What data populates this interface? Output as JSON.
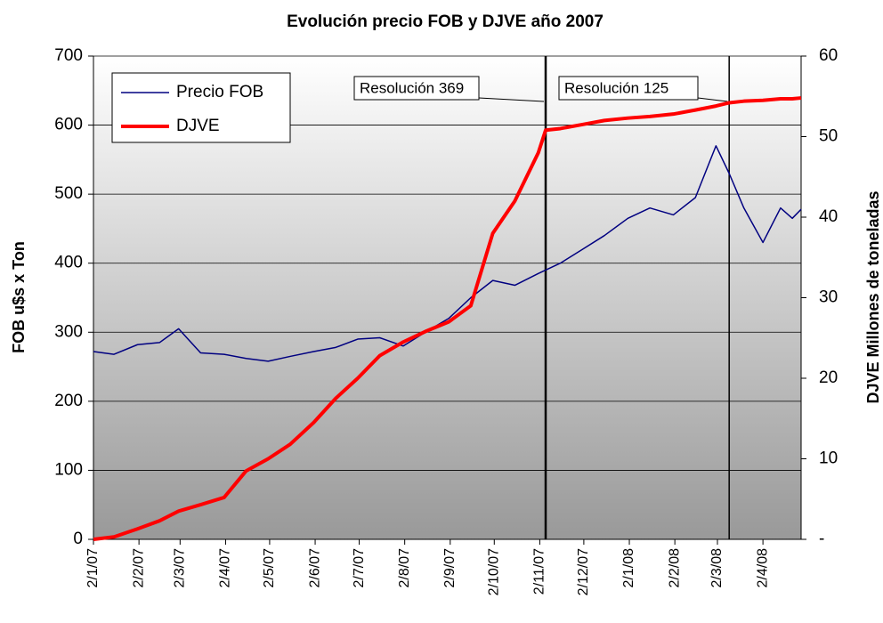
{
  "chart_data": {
    "type": "line",
    "title": "Evolución precio FOB y DJVE año 2007",
    "y_label": "FOB u$s x Ton",
    "y2_label": "DJVE Millones de toneladas",
    "x": [
      "2007-01-02",
      "2007-01-16",
      "2007-02-01",
      "2007-02-16",
      "2007-03-01",
      "2007-03-16",
      "2007-04-01",
      "2007-04-16",
      "2007-05-01",
      "2007-05-16",
      "2007-06-01",
      "2007-06-16",
      "2007-07-01",
      "2007-07-16",
      "2007-08-01",
      "2007-08-16",
      "2007-09-01",
      "2007-09-16",
      "2007-10-01",
      "2007-10-16",
      "2007-11-01",
      "2007-11-06",
      "2007-11-16",
      "2007-12-01",
      "2007-12-16",
      "2008-01-01",
      "2008-01-16",
      "2008-02-01",
      "2008-02-16",
      "2008-03-01",
      "2008-03-10",
      "2008-03-20",
      "2008-04-02",
      "2008-04-14",
      "2008-04-22",
      "2008-04-28"
    ],
    "series": [
      {
        "name": "Precio FOB",
        "color": "#000080",
        "axis": "y",
        "values": [
          272,
          268,
          282,
          285,
          305,
          270,
          268,
          262,
          258,
          265,
          272,
          278,
          290,
          292,
          280,
          300,
          320,
          350,
          375,
          368,
          385,
          390,
          400,
          420,
          440,
          465,
          480,
          470,
          495,
          570,
          530,
          480,
          430,
          480,
          465,
          478
        ]
      },
      {
        "name": "DJVE",
        "color": "#ff0000",
        "axis": "y2",
        "values": [
          0,
          0.3,
          1.3,
          2.3,
          3.5,
          4.3,
          5.2,
          8.5,
          10,
          11.8,
          14.5,
          17.5,
          20,
          22.8,
          24.5,
          25.8,
          27,
          29,
          38,
          42,
          48,
          50.8,
          51,
          51.5,
          52,
          52.3,
          52.5,
          52.8,
          53.3,
          53.8,
          54.2,
          54.4,
          54.5,
          54.7,
          54.7,
          54.8
        ]
      }
    ],
    "xlim": [
      "2007-01-02",
      "2008-04-28"
    ],
    "xticks": [
      {
        "value": "2007-01-02",
        "label": "2/1/07"
      },
      {
        "value": "2007-02-02",
        "label": "2/2/07"
      },
      {
        "value": "2007-03-02",
        "label": "2/3/07"
      },
      {
        "value": "2007-04-02",
        "label": "2/4/07"
      },
      {
        "value": "2007-05-02",
        "label": "2/5/07"
      },
      {
        "value": "2007-06-02",
        "label": "2/6/07"
      },
      {
        "value": "2007-07-02",
        "label": "2/7/07"
      },
      {
        "value": "2007-08-02",
        "label": "2/8/07"
      },
      {
        "value": "2007-09-02",
        "label": "2/9/07"
      },
      {
        "value": "2007-10-02",
        "label": "2/10/07"
      },
      {
        "value": "2007-11-02",
        "label": "2/11/07"
      },
      {
        "value": "2007-12-02",
        "label": "2/12/07"
      },
      {
        "value": "2008-01-02",
        "label": "2/1/08"
      },
      {
        "value": "2008-02-02",
        "label": "2/2/08"
      },
      {
        "value": "2008-03-02",
        "label": "2/3/08"
      },
      {
        "value": "2008-04-02",
        "label": "2/4/08"
      }
    ],
    "ylim": [
      0,
      700
    ],
    "yticks": [
      0,
      100,
      200,
      300,
      400,
      500,
      600,
      700
    ],
    "y2lim": [
      0,
      60
    ],
    "y2ticks": [
      {
        "value": 0,
        "label": "-"
      },
      10,
      20,
      30,
      40,
      50,
      60
    ],
    "grid": true,
    "annotations": [
      {
        "text": "Resolución 369",
        "x": "2007-11-06"
      },
      {
        "text": "Resolución 125",
        "x": "2008-03-10"
      }
    ]
  }
}
